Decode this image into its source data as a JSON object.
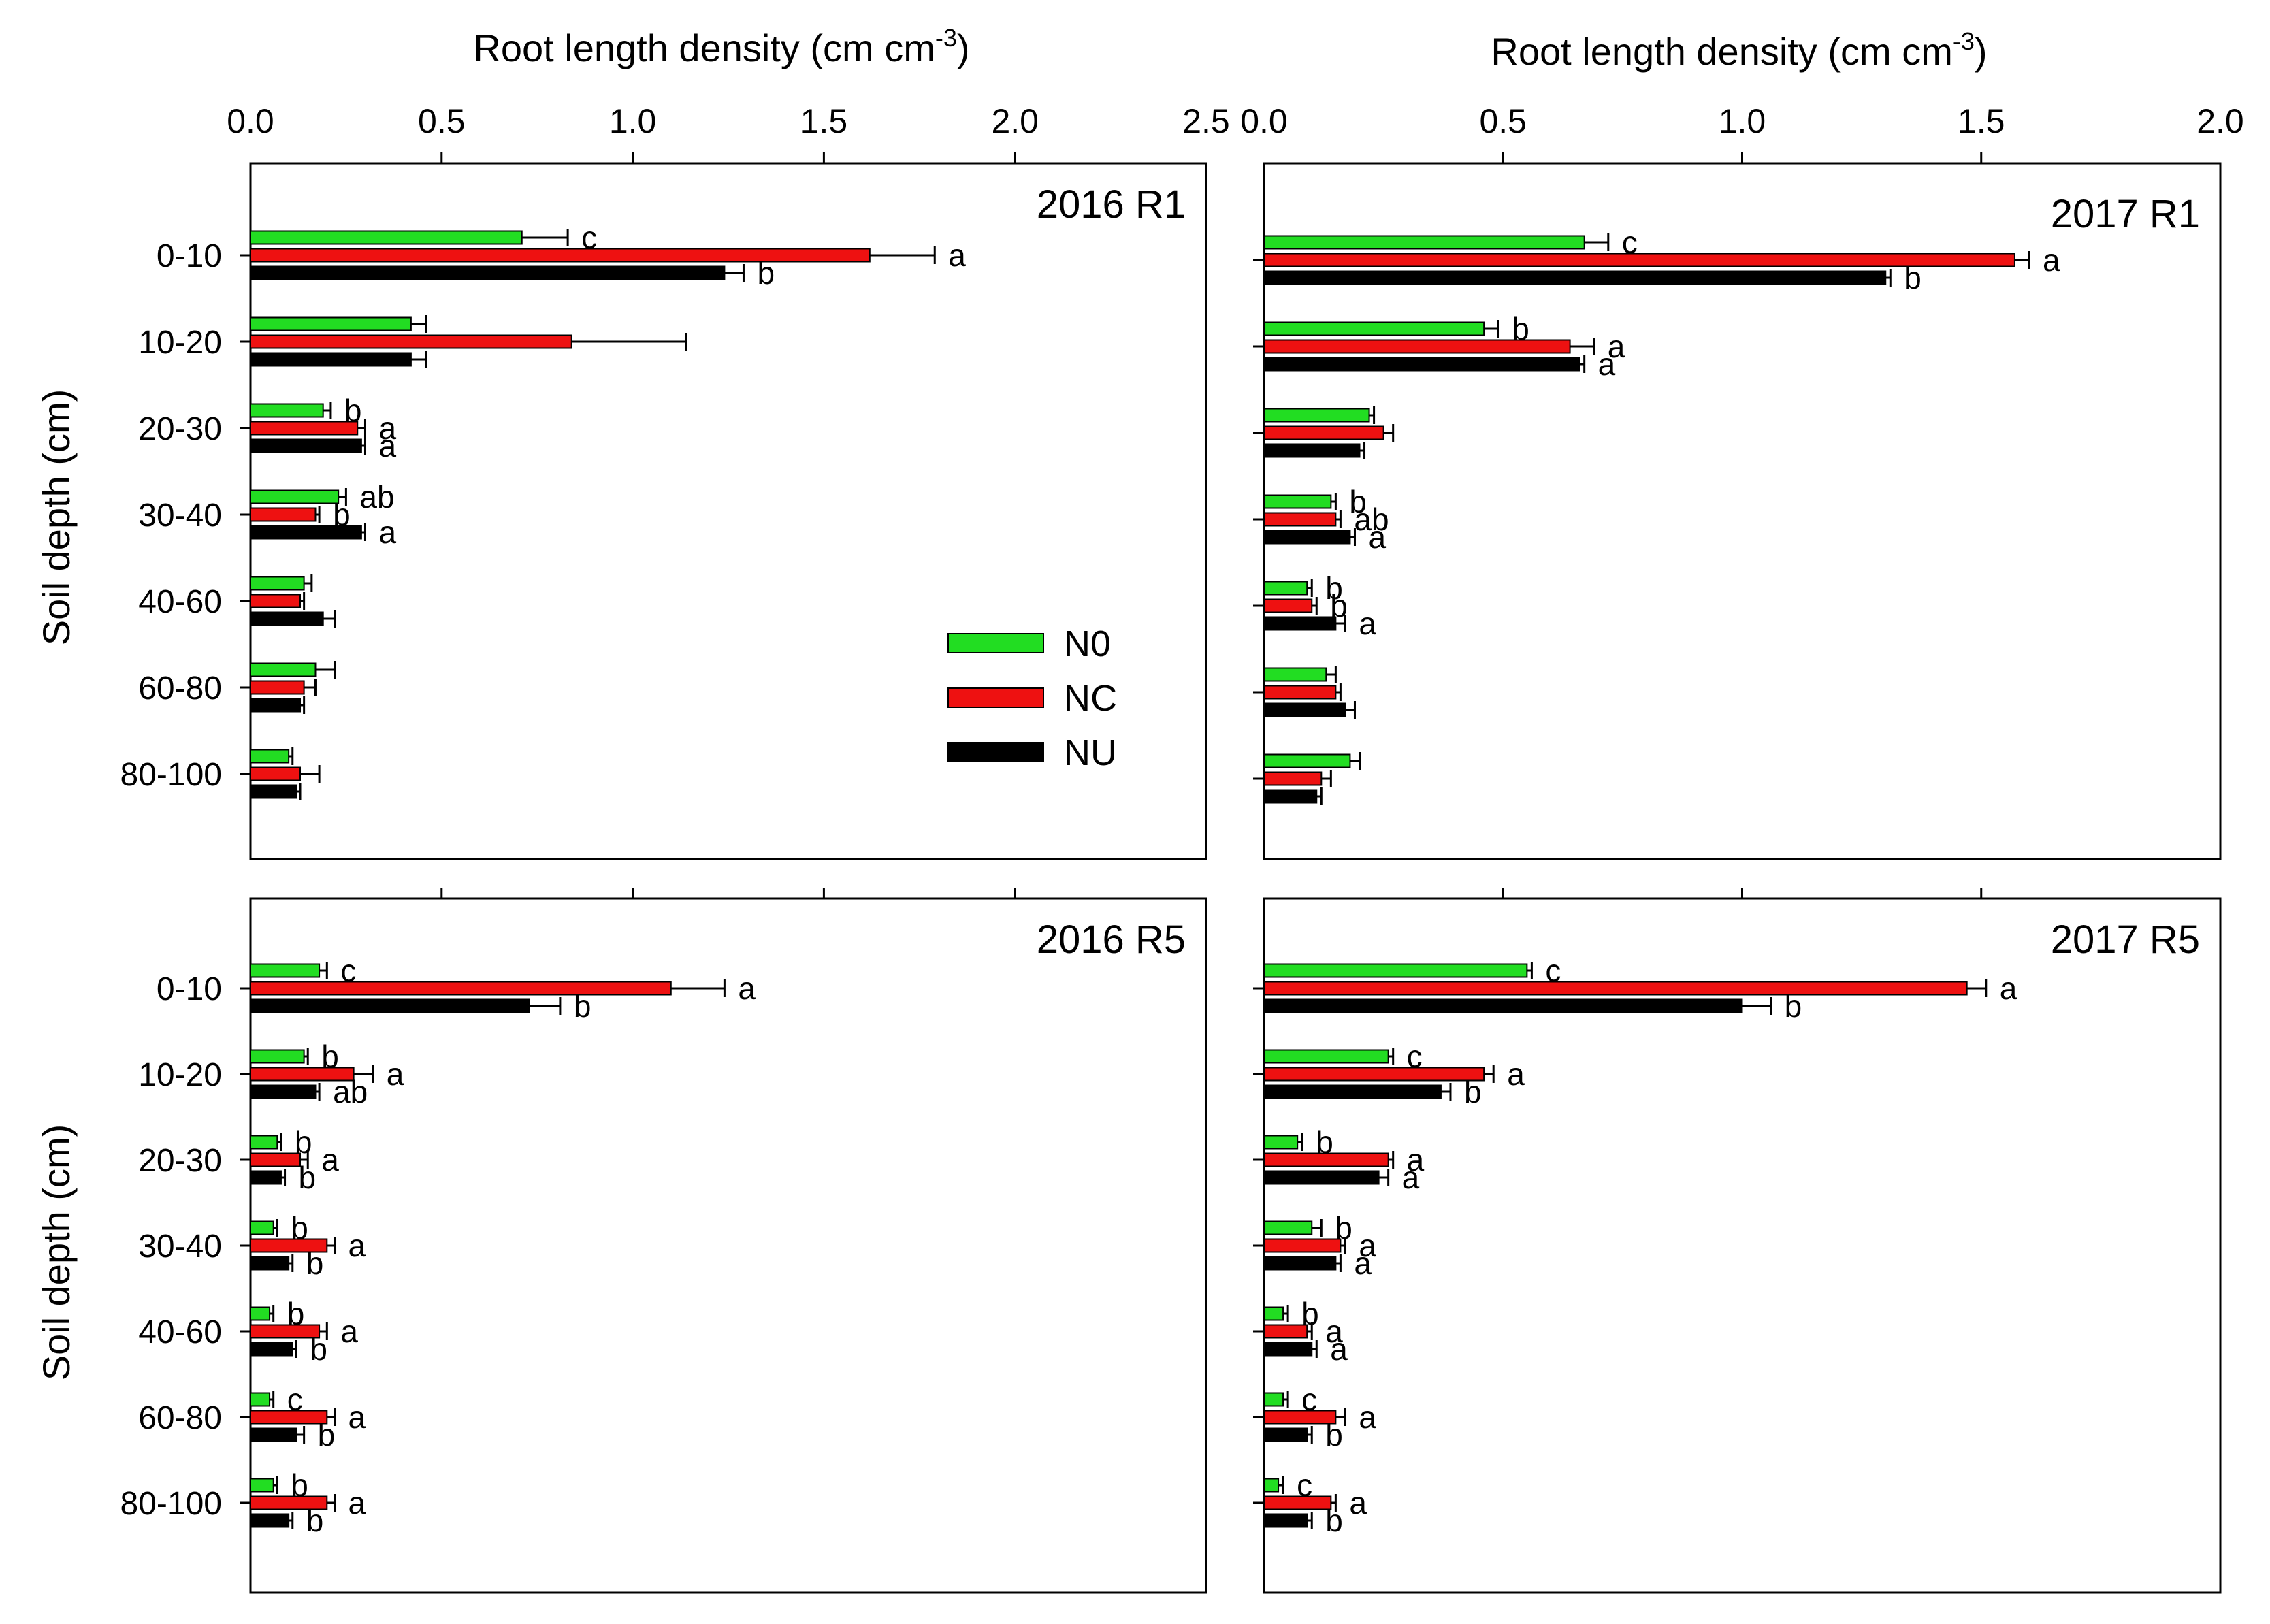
{
  "figure": {
    "x_axis_title_left": "Root length density (cm cm",
    "x_axis_title_right": "Root length density (cm cm",
    "x_axis_title_superscript": "-3",
    "x_axis_title_close": ")",
    "y_axis_title": "Soil depth (cm)"
  },
  "legend": [
    {
      "name": "N0",
      "color": "#22dd22"
    },
    {
      "name": "NC",
      "color": "#ee1111"
    },
    {
      "name": "NU",
      "color": "#000000"
    }
  ],
  "chart_data": [
    {
      "type": "bar",
      "orientation": "horizontal",
      "title": "2016  R1",
      "categories": [
        "0-10",
        "10-20",
        "20-30",
        "30-40",
        "40-60",
        "60-80",
        "80-100"
      ],
      "xlim": [
        0,
        2.5
      ],
      "xticks": [
        0,
        0.5,
        1.0,
        1.5,
        2.0,
        2.5
      ],
      "xtick_labels": [
        "0.0",
        "0.5",
        "1.0",
        "1.5",
        "2.0",
        "2.5"
      ],
      "series": [
        {
          "name": "N0",
          "values": [
            0.71,
            0.42,
            0.19,
            0.23,
            0.14,
            0.17,
            0.1
          ],
          "errors": [
            0.12,
            0.04,
            0.02,
            0.02,
            0.02,
            0.05,
            0.01
          ],
          "letters": [
            "c",
            "",
            "b",
            "ab",
            "",
            "",
            ""
          ]
        },
        {
          "name": "NC",
          "values": [
            1.62,
            0.84,
            0.28,
            0.17,
            0.13,
            0.14,
            0.13
          ],
          "errors": [
            0.17,
            0.3,
            0.02,
            0.01,
            0.01,
            0.03,
            0.05
          ],
          "letters": [
            "a",
            "",
            "a",
            "b",
            "",
            "",
            ""
          ]
        },
        {
          "name": "NU",
          "values": [
            1.24,
            0.42,
            0.29,
            0.29,
            0.19,
            0.13,
            0.12
          ],
          "errors": [
            0.05,
            0.04,
            0.01,
            0.01,
            0.03,
            0.01,
            0.01
          ],
          "letters": [
            "b",
            "",
            "a",
            "a",
            "",
            "",
            ""
          ]
        }
      ]
    },
    {
      "type": "bar",
      "orientation": "horizontal",
      "title": "2017  R1",
      "categories": [
        "0-10",
        "10-20",
        "20-30",
        "30-40",
        "40-60",
        "60-80",
        "80-100"
      ],
      "xlim": [
        0,
        2.0
      ],
      "xticks": [
        0,
        0.5,
        1.0,
        1.5,
        2.0
      ],
      "xtick_labels": [
        "0.0",
        "0.5",
        "1.0",
        "1.5",
        "2.0"
      ],
      "series": [
        {
          "name": "N0",
          "values": [
            0.67,
            0.46,
            0.22,
            0.14,
            0.09,
            0.13,
            0.18
          ],
          "errors": [
            0.05,
            0.03,
            0.01,
            0.01,
            0.01,
            0.02,
            0.02
          ],
          "letters": [
            "c",
            "b",
            "",
            "b",
            "b",
            "",
            ""
          ]
        },
        {
          "name": "NC",
          "values": [
            1.57,
            0.64,
            0.25,
            0.15,
            0.1,
            0.15,
            0.12
          ],
          "errors": [
            0.03,
            0.05,
            0.02,
            0.01,
            0.01,
            0.01,
            0.02
          ],
          "letters": [
            "a",
            "a",
            "",
            "ab",
            "b",
            "",
            ""
          ]
        },
        {
          "name": "NU",
          "values": [
            1.3,
            0.66,
            0.2,
            0.18,
            0.15,
            0.17,
            0.11
          ],
          "errors": [
            0.01,
            0.01,
            0.01,
            0.01,
            0.02,
            0.02,
            0.01
          ],
          "letters": [
            "b",
            "a",
            "",
            "a",
            "a",
            "",
            ""
          ]
        }
      ]
    },
    {
      "type": "bar",
      "orientation": "horizontal",
      "title": "2016  R5",
      "categories": [
        "0-10",
        "10-20",
        "20-30",
        "30-40",
        "40-60",
        "60-80",
        "80-100"
      ],
      "xlim": [
        0,
        2.5
      ],
      "xticks": [
        0,
        0.5,
        1.0,
        1.5,
        2.0,
        2.5
      ],
      "xtick_labels": [
        "",
        "",
        "",
        "",
        "",
        ""
      ],
      "series": [
        {
          "name": "N0",
          "values": [
            0.18,
            0.14,
            0.07,
            0.06,
            0.05,
            0.05,
            0.06
          ],
          "errors": [
            0.02,
            0.01,
            0.01,
            0.01,
            0.01,
            0.01,
            0.01
          ],
          "letters": [
            "c",
            "b",
            "b",
            "b",
            "b",
            "c",
            "b"
          ]
        },
        {
          "name": "NC",
          "values": [
            1.1,
            0.27,
            0.13,
            0.2,
            0.18,
            0.2,
            0.2
          ],
          "errors": [
            0.14,
            0.05,
            0.02,
            0.02,
            0.02,
            0.02,
            0.02
          ],
          "letters": [
            "a",
            "a",
            "a",
            "a",
            "a",
            "a",
            "a"
          ]
        },
        {
          "name": "NU",
          "values": [
            0.73,
            0.17,
            0.08,
            0.1,
            0.11,
            0.12,
            0.1
          ],
          "errors": [
            0.08,
            0.01,
            0.01,
            0.01,
            0.01,
            0.02,
            0.01
          ],
          "letters": [
            "b",
            "ab",
            "b",
            "b",
            "b",
            "b",
            "b"
          ]
        }
      ]
    },
    {
      "type": "bar",
      "orientation": "horizontal",
      "title": "2017  R5",
      "categories": [
        "0-10",
        "10-20",
        "20-30",
        "30-40",
        "40-60",
        "60-80",
        "80-100"
      ],
      "xlim": [
        0,
        2.0
      ],
      "xticks": [
        0,
        0.5,
        1.0,
        1.5,
        2.0
      ],
      "xtick_labels": [
        "",
        "",
        "",
        "",
        ""
      ],
      "series": [
        {
          "name": "N0",
          "values": [
            0.55,
            0.26,
            0.07,
            0.1,
            0.04,
            0.04,
            0.03
          ],
          "errors": [
            0.01,
            0.01,
            0.01,
            0.02,
            0.01,
            0.01,
            0.01
          ],
          "letters": [
            "c",
            "c",
            "b",
            "b",
            "b",
            "c",
            "c"
          ]
        },
        {
          "name": "NC",
          "values": [
            1.47,
            0.46,
            0.26,
            0.16,
            0.09,
            0.15,
            0.14
          ],
          "errors": [
            0.04,
            0.02,
            0.01,
            0.01,
            0.01,
            0.02,
            0.01
          ],
          "letters": [
            "a",
            "a",
            "a",
            "a",
            "a",
            "a",
            "a"
          ]
        },
        {
          "name": "NU",
          "values": [
            1.0,
            0.37,
            0.24,
            0.15,
            0.1,
            0.09,
            0.09
          ],
          "errors": [
            0.06,
            0.02,
            0.02,
            0.01,
            0.01,
            0.01,
            0.01
          ],
          "letters": [
            "b",
            "b",
            "a",
            "a",
            "a",
            "b",
            "b"
          ]
        }
      ]
    }
  ]
}
